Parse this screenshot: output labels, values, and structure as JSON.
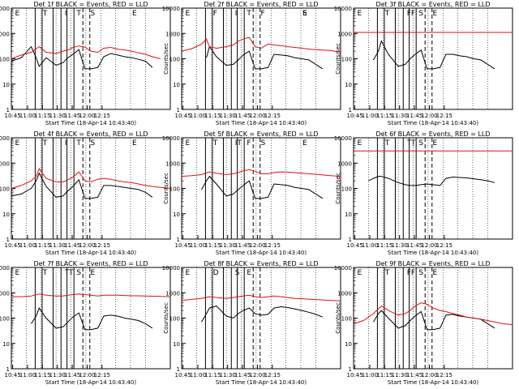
{
  "chart_data": [
    {
      "type": "line",
      "title": "Det 1f BLACK = Events, RED = LLD",
      "xlabel": "Start Time (18-Apr-14 10:43:40)",
      "ylabel": "Counts/sec",
      "x_ticks": [
        "10:45",
        "11:00",
        "11:15",
        "11:30",
        "11:45",
        "12:00",
        "12:15"
      ],
      "y_ticks": [
        "1",
        "10",
        "100",
        "1000",
        "10000"
      ],
      "flag_labels": [
        "E",
        "T",
        "I",
        "T",
        "S",
        "E"
      ],
      "series": [
        {
          "name": "BLACK = Events",
          "color": "#000000",
          "x_minutes": [
            0,
            10,
            20,
            25,
            28,
            35,
            45,
            52,
            57,
            62,
            68,
            74,
            80,
            87,
            93,
            100,
            107,
            114,
            121,
            128,
            135,
            142,
            150,
            160
          ],
          "values": [
            80,
            110,
            300,
            110,
            50,
            110,
            55,
            70,
            110,
            150,
            230,
            40,
            40,
            45,
            120,
            160,
            140,
            120,
            110,
            95,
            80,
            45,
            null,
            null
          ]
        },
        {
          "name": "RED = LLD",
          "color": "#e0120e",
          "x_minutes": [
            0,
            10,
            20,
            28,
            35,
            45,
            52,
            57,
            62,
            68,
            74,
            80,
            87,
            93,
            100,
            107,
            114,
            121,
            128,
            135,
            142,
            150
          ],
          "values": [
            100,
            140,
            180,
            300,
            180,
            160,
            200,
            220,
            280,
            320,
            290,
            200,
            180,
            260,
            280,
            240,
            220,
            200,
            170,
            150,
            120,
            100
          ]
        }
      ]
    },
    {
      "type": "line",
      "title": "Det 2f BLACK = Events, RED = LLD",
      "xlabel": "Start Time (18-Apr-14 10:43:40)",
      "ylabel": "Counts/sec",
      "x_ticks": [
        "10:45",
        "11:00",
        "11:15",
        "11:30",
        "11:45",
        "12:00",
        "12:15"
      ],
      "y_ticks": [
        "1",
        "10",
        "100",
        "1000",
        "10000"
      ],
      "flag_labels": [
        "E",
        "F",
        "I",
        "T",
        "F",
        "S",
        "E"
      ],
      "series": [
        {
          "name": "BLACK = Events",
          "color": "#000000",
          "x_minutes": [
            0,
            10,
            20,
            25,
            28,
            35,
            45,
            52,
            57,
            62,
            68,
            74,
            80,
            87,
            93,
            100,
            107,
            114,
            121,
            128,
            135,
            142,
            150
          ],
          "values": [
            null,
            null,
            null,
            110,
            300,
            120,
            55,
            60,
            90,
            140,
            200,
            40,
            40,
            45,
            150,
            140,
            130,
            110,
            100,
            90,
            60,
            40,
            null
          ]
        },
        {
          "name": "RED = LLD",
          "color": "#e0120e",
          "x_minutes": [
            0,
            10,
            20,
            25,
            28,
            35,
            45,
            52,
            57,
            62,
            68,
            74,
            80,
            87,
            93,
            100,
            107,
            114,
            121,
            128,
            135,
            142,
            150,
            160
          ],
          "values": [
            200,
            250,
            380,
            600,
            300,
            260,
            300,
            350,
            500,
            600,
            700,
            300,
            260,
            380,
            350,
            330,
            300,
            280,
            260,
            240,
            230,
            220,
            210,
            180
          ]
        }
      ]
    },
    {
      "type": "line",
      "title": "Det 3f BLACK = Events, RED = LLD",
      "xlabel": "Start Time (18-Apr-14 10:43:40)",
      "ylabel": "Counts/sec",
      "x_ticks": [
        "10:45",
        "11:00",
        "11:15",
        "11:30",
        "11:45",
        "12:00",
        "12:15"
      ],
      "y_ticks": [
        "1",
        "10",
        "100",
        "1000",
        "10000"
      ],
      "flag_labels": [
        "E",
        "T",
        "FF",
        "S",
        "E"
      ],
      "series": [
        {
          "name": "BLACK = Events",
          "color": "#000000",
          "x_minutes": [
            20,
            25,
            28,
            35,
            45,
            52,
            57,
            62,
            68,
            74,
            80,
            87,
            93,
            100,
            107,
            114,
            121,
            128,
            135,
            142
          ],
          "values": [
            90,
            200,
            500,
            150,
            50,
            60,
            100,
            150,
            220,
            40,
            40,
            45,
            150,
            150,
            130,
            120,
            100,
            90,
            60,
            40
          ]
        },
        {
          "name": "RED = LLD",
          "color": "#e0120e",
          "x_minutes": [
            0,
            160
          ],
          "values": [
            1100,
            1100
          ]
        }
      ]
    },
    {
      "type": "line",
      "title": "Det 4f BLACK = Events, RED = LLD",
      "xlabel": "Start Time (18-Apr-14 10:43:40)",
      "ylabel": "Counts/sec",
      "x_ticks": [
        "10:45",
        "11:00",
        "11:15",
        "11:30",
        "11:45",
        "12:00",
        "12:15"
      ],
      "y_ticks": [
        "1",
        "10",
        "100",
        "1000",
        "10000"
      ],
      "flag_labels": [
        "E",
        "T",
        "I",
        "T",
        "S",
        "E"
      ],
      "series": [
        {
          "name": "BLACK = Events",
          "color": "#000000",
          "x_minutes": [
            0,
            10,
            20,
            25,
            28,
            35,
            45,
            52,
            57,
            62,
            68,
            74,
            80,
            87,
            93,
            100,
            107,
            114,
            121,
            128,
            135,
            142,
            150
          ],
          "values": [
            50,
            60,
            100,
            200,
            400,
            120,
            45,
            50,
            80,
            120,
            220,
            40,
            40,
            45,
            130,
            130,
            120,
            110,
            100,
            90,
            70,
            45,
            null
          ]
        },
        {
          "name": "RED = LLD",
          "color": "#e0120e",
          "x_minutes": [
            0,
            10,
            20,
            25,
            28,
            35,
            45,
            52,
            57,
            62,
            68,
            74,
            80,
            87,
            93,
            100,
            107,
            114,
            121,
            128,
            135,
            142,
            150,
            160
          ],
          "values": [
            100,
            130,
            200,
            300,
            600,
            250,
            180,
            180,
            220,
            280,
            450,
            200,
            180,
            230,
            250,
            230,
            200,
            180,
            170,
            150,
            130,
            120,
            110,
            100
          ]
        }
      ]
    },
    {
      "type": "line",
      "title": "Det 5f BLACK = Events, RED = LLD",
      "xlabel": "Start Time (18-Apr-14 10:43:40)",
      "ylabel": "Counts/sec",
      "x_ticks": [
        "10:45",
        "11:00",
        "11:15",
        "11:30",
        "11:45",
        "12:00",
        "12:15"
      ],
      "y_ticks": [
        "1",
        "10",
        "100",
        "1000",
        "10000"
      ],
      "flag_labels": [
        "E",
        "T",
        "IT",
        "F",
        "S",
        "E"
      ],
      "series": [
        {
          "name": "BLACK = Events",
          "color": "#000000",
          "x_minutes": [
            20,
            25,
            28,
            35,
            45,
            52,
            57,
            62,
            68,
            74,
            80,
            87,
            93,
            100,
            107,
            114,
            121,
            128,
            135,
            142
          ],
          "values": [
            90,
            200,
            300,
            150,
            50,
            60,
            90,
            130,
            200,
            40,
            40,
            45,
            150,
            140,
            130,
            110,
            100,
            90,
            60,
            40
          ]
        },
        {
          "name": "RED = LLD",
          "color": "#e0120e",
          "x_minutes": [
            0,
            10,
            20,
            28,
            35,
            45,
            52,
            57,
            62,
            68,
            74,
            80,
            87,
            93,
            100,
            107,
            114,
            121,
            128,
            135,
            142,
            150,
            160
          ],
          "values": [
            300,
            320,
            350,
            450,
            400,
            350,
            380,
            420,
            500,
            550,
            480,
            380,
            380,
            420,
            450,
            440,
            420,
            400,
            380,
            360,
            340,
            320,
            300
          ]
        }
      ]
    },
    {
      "type": "line",
      "title": "Det 6f BLACK = Events, RED = LLD",
      "xlabel": "Start Time (18-Apr-14 10:43:40)",
      "ylabel": "Counts/sec",
      "x_ticks": [
        "10:45",
        "11:00",
        "11:15",
        "11:30",
        "11:45",
        "12:00",
        "12:15"
      ],
      "y_ticks": [
        "1",
        "10",
        "100",
        "1000",
        "10000"
      ],
      "flag_labels": [
        "E",
        "T",
        "TT",
        "S",
        "E"
      ],
      "series": [
        {
          "name": "BLACK = Events",
          "color": "#000000",
          "x_minutes": [
            15,
            20,
            25,
            28,
            35,
            45,
            52,
            57,
            62,
            68,
            74,
            80,
            87,
            93,
            100,
            107,
            114,
            121,
            128,
            135,
            142
          ],
          "values": [
            200,
            250,
            300,
            300,
            250,
            170,
            140,
            130,
            130,
            140,
            150,
            140,
            130,
            250,
            280,
            270,
            260,
            240,
            220,
            200,
            170
          ]
        },
        {
          "name": "RED = LLD",
          "color": "#e0120e",
          "x_minutes": [
            0,
            160
          ],
          "values": [
            3000,
            3000
          ]
        }
      ]
    },
    {
      "type": "line",
      "title": "Det 7f BLACK = Events, RED = LLD",
      "xlabel": "Start Time (18-Apr-14 10:43:40)",
      "ylabel": "Counts/sec",
      "x_ticks": [
        "10:45",
        "11:00",
        "11:15",
        "11:30",
        "11:45",
        "12:00",
        "12:15"
      ],
      "y_ticks": [
        "1",
        "10",
        "100",
        "1000",
        "10000"
      ],
      "flag_labels": [
        "E",
        "T",
        "TT",
        "S",
        "E"
      ],
      "series": [
        {
          "name": "BLACK = Events",
          "color": "#000000",
          "x_minutes": [
            20,
            25,
            28,
            35,
            45,
            52,
            57,
            62,
            68,
            74,
            80,
            87,
            93,
            100,
            107,
            114,
            121,
            128,
            135,
            142
          ],
          "values": [
            60,
            120,
            250,
            100,
            40,
            45,
            70,
            110,
            160,
            35,
            35,
            40,
            120,
            130,
            120,
            100,
            90,
            80,
            60,
            40
          ]
        },
        {
          "name": "RED = LLD",
          "color": "#e0120e",
          "x_minutes": [
            0,
            10,
            20,
            28,
            35,
            45,
            52,
            57,
            62,
            68,
            74,
            80,
            87,
            93,
            100,
            107,
            114,
            121,
            128,
            135,
            142,
            150,
            160
          ],
          "values": [
            700,
            700,
            750,
            900,
            800,
            750,
            750,
            800,
            850,
            900,
            850,
            800,
            750,
            800,
            800,
            800,
            780,
            760,
            760,
            740,
            730,
            720,
            700
          ]
        }
      ]
    },
    {
      "type": "line",
      "title": "Det 8f BLACK = Events, RED = LLD",
      "xlabel": "Start Time (18-Apr-14 10:43:40)",
      "ylabel": "Counts/sec",
      "x_ticks": [
        "10:45",
        "11:00",
        "11:15",
        "11:30",
        "11:45",
        "12:00",
        "12:15"
      ],
      "y_ticks": [
        "1",
        "10",
        "100",
        "1000",
        "10000"
      ],
      "flag_labels": [
        "E",
        "D",
        "S",
        "E"
      ],
      "series": [
        {
          "name": "BLACK = Events",
          "color": "#000000",
          "x_minutes": [
            20,
            25,
            28,
            35,
            45,
            52,
            57,
            62,
            68,
            74,
            80,
            87,
            93,
            100,
            107,
            114,
            121,
            128,
            135,
            142
          ],
          "values": [
            70,
            150,
            250,
            300,
            120,
            100,
            150,
            200,
            250,
            150,
            130,
            140,
            250,
            280,
            260,
            230,
            200,
            170,
            140,
            110
          ]
        },
        {
          "name": "RED = LLD",
          "color": "#e0120e",
          "x_minutes": [
            0,
            10,
            20,
            28,
            35,
            45,
            52,
            57,
            62,
            68,
            74,
            80,
            87,
            93,
            100,
            107,
            114,
            121,
            128,
            135,
            142,
            150,
            160
          ],
          "values": [
            500,
            550,
            600,
            700,
            650,
            600,
            650,
            700,
            750,
            800,
            700,
            650,
            700,
            750,
            700,
            650,
            600,
            580,
            560,
            540,
            520,
            500,
            480
          ]
        }
      ]
    },
    {
      "type": "line",
      "title": "Det 9f BLACK = Events, RED = LLD",
      "xlabel": "Start Time (18-Apr-14 10:43:40)",
      "ylabel": "Counts/sec",
      "x_ticks": [
        "10:45",
        "11:00",
        "11:15",
        "11:30",
        "11:45",
        "12:00",
        "12:15"
      ],
      "y_ticks": [
        "1",
        "10",
        "100",
        "1000",
        "10000"
      ],
      "flag_labels": [
        "E",
        "T",
        "FF",
        "S",
        "E"
      ],
      "series": [
        {
          "name": "BLACK = Events",
          "color": "#000000",
          "x_minutes": [
            20,
            25,
            28,
            35,
            45,
            52,
            57,
            62,
            68,
            74,
            80,
            87,
            93,
            100,
            107,
            114,
            121,
            128,
            135,
            142
          ],
          "values": [
            70,
            150,
            200,
            100,
            40,
            50,
            80,
            120,
            180,
            35,
            35,
            40,
            130,
            140,
            120,
            110,
            100,
            90,
            60,
            40
          ]
        },
        {
          "name": "RED = LLD",
          "color": "#e0120e",
          "x_minutes": [
            0,
            10,
            20,
            28,
            35,
            45,
            52,
            57,
            62,
            68,
            74,
            80,
            87,
            93,
            100,
            107,
            114,
            121,
            128,
            135,
            142,
            150,
            160
          ],
          "values": [
            60,
            80,
            150,
            300,
            200,
            130,
            150,
            200,
            300,
            400,
            350,
            250,
            200,
            180,
            150,
            130,
            110,
            100,
            90,
            80,
            70,
            60,
            55
          ]
        }
      ]
    }
  ]
}
